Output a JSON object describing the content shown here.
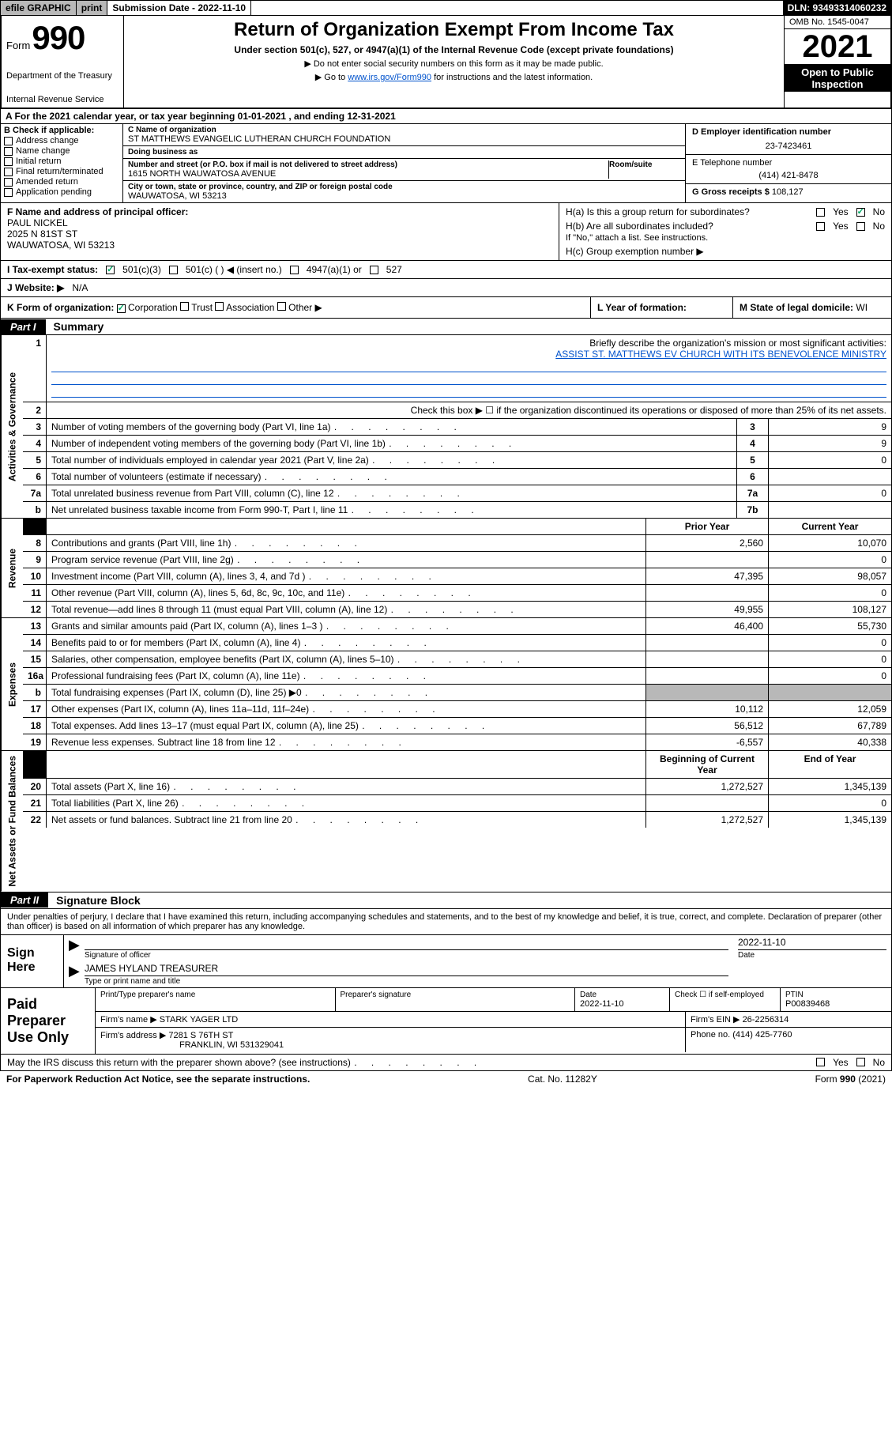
{
  "efile": {
    "graphic": "efile GRAPHIC",
    "print": "print",
    "submission_label": "Submission Date - 2022-11-10",
    "dln_label": "DLN: 93493314060232"
  },
  "header": {
    "form_word": "Form",
    "form_number": "990",
    "dept": "Department of the Treasury",
    "irs": "Internal Revenue Service",
    "title": "Return of Organization Exempt From Income Tax",
    "subtitle": "Under section 501(c), 527, or 4947(a)(1) of the Internal Revenue Code (except private foundations)",
    "note1": "▶ Do not enter social security numbers on this form as it may be made public.",
    "note2_pre": "▶ Go to ",
    "note2_link": "www.irs.gov/Form990",
    "note2_post": " for instructions and the latest information.",
    "omb": "OMB No. 1545-0047",
    "year": "2021",
    "open_public1": "Open to Public",
    "open_public2": "Inspection"
  },
  "sec_a": "A  For the 2021 calendar year, or tax year beginning 01-01-2021    , and ending 12-31-2021",
  "sec_b": {
    "label": "B Check if applicable:",
    "address_change": "Address change",
    "name_change": "Name change",
    "initial_return": "Initial return",
    "final_return": "Final return/terminated",
    "amended": "Amended return",
    "app_pending": "Application pending"
  },
  "sec_c": {
    "name_lbl": "C Name of organization",
    "name": "ST MATTHEWS EVANGELIC LUTHERAN CHURCH FOUNDATION",
    "dba_lbl": "Doing business as",
    "dba": "",
    "addr_lbl": "Number and street (or P.O. box if mail is not delivered to street address)",
    "addr": "1615 NORTH WAUWATOSA AVENUE",
    "room_lbl": "Room/suite",
    "city_lbl": "City or town, state or province, country, and ZIP or foreign postal code",
    "city": "WAUWATOSA, WI  53213"
  },
  "sec_d": {
    "lbl": "D Employer identification number",
    "val": "23-7423461"
  },
  "sec_e": {
    "lbl": "E Telephone number",
    "val": "(414) 421-8478"
  },
  "sec_g": {
    "lbl": "G Gross receipts $",
    "val": "108,127"
  },
  "sec_f": {
    "lbl": "F Name and address of principal officer:",
    "name": "PAUL NICKEL",
    "addr1": "2025 N 81ST ST",
    "addr2": "WAUWATOSA, WI  53213"
  },
  "sec_h": {
    "ha": "H(a)  Is this a group return for subordinates?",
    "hb": "H(b)  Are all subordinates included?",
    "hb_note": "If \"No,\" attach a list. See instructions.",
    "hc": "H(c)  Group exemption number ▶",
    "yes": "Yes",
    "no": "No"
  },
  "sec_i": {
    "lbl": "I   Tax-exempt status:",
    "o1": "501(c)(3)",
    "o2": "501(c) (  ) ◀ (insert no.)",
    "o3": "4947(a)(1) or",
    "o4": "527"
  },
  "sec_j": {
    "lbl": "J   Website: ▶",
    "val": "N/A"
  },
  "sec_k": {
    "lbl": "K Form of organization:",
    "corp": "Corporation",
    "trust": "Trust",
    "assoc": "Association",
    "other": "Other ▶"
  },
  "sec_l": {
    "lbl": "L Year of formation:",
    "val": ""
  },
  "sec_m": {
    "lbl": "M State of legal domicile:",
    "val": "WI"
  },
  "part1": {
    "tag": "Part I",
    "title": "Summary"
  },
  "summary": {
    "l1_lbl": "Briefly describe the organization's mission or most significant activities:",
    "l1_val": "ASSIST ST. MATTHEWS EV CHURCH WITH ITS BENEVOLENCE MINISTRY",
    "l2": "Check this box ▶ ☐  if the organization discontinued its operations or disposed of more than 25% of its net assets.",
    "rows_single": [
      {
        "n": "3",
        "lbl": "Number of voting members of the governing body (Part VI, line 1a)",
        "box": "3",
        "val": "9"
      },
      {
        "n": "4",
        "lbl": "Number of independent voting members of the governing body (Part VI, line 1b)",
        "box": "4",
        "val": "9"
      },
      {
        "n": "5",
        "lbl": "Total number of individuals employed in calendar year 2021 (Part V, line 2a)",
        "box": "5",
        "val": "0"
      },
      {
        "n": "6",
        "lbl": "Total number of volunteers (estimate if necessary)",
        "box": "6",
        "val": ""
      },
      {
        "n": "7a",
        "lbl": "Total unrelated business revenue from Part VIII, column (C), line 12",
        "box": "7a",
        "val": "0"
      },
      {
        "n": "b",
        "lbl": "Net unrelated business taxable income from Form 990-T, Part I, line 11",
        "box": "7b",
        "val": ""
      }
    ],
    "col_prior": "Prior Year",
    "col_current": "Current Year",
    "rev_rows": [
      {
        "n": "8",
        "lbl": "Contributions and grants (Part VIII, line 1h)",
        "py": "2,560",
        "cy": "10,070"
      },
      {
        "n": "9",
        "lbl": "Program service revenue (Part VIII, line 2g)",
        "py": "",
        "cy": "0"
      },
      {
        "n": "10",
        "lbl": "Investment income (Part VIII, column (A), lines 3, 4, and 7d )",
        "py": "47,395",
        "cy": "98,057"
      },
      {
        "n": "11",
        "lbl": "Other revenue (Part VIII, column (A), lines 5, 6d, 8c, 9c, 10c, and 11e)",
        "py": "",
        "cy": "0"
      },
      {
        "n": "12",
        "lbl": "Total revenue—add lines 8 through 11 (must equal Part VIII, column (A), line 12)",
        "py": "49,955",
        "cy": "108,127"
      }
    ],
    "exp_rows": [
      {
        "n": "13",
        "lbl": "Grants and similar amounts paid (Part IX, column (A), lines 1–3 )",
        "py": "46,400",
        "cy": "55,730"
      },
      {
        "n": "14",
        "lbl": "Benefits paid to or for members (Part IX, column (A), line 4)",
        "py": "",
        "cy": "0"
      },
      {
        "n": "15",
        "lbl": "Salaries, other compensation, employee benefits (Part IX, column (A), lines 5–10)",
        "py": "",
        "cy": "0"
      },
      {
        "n": "16a",
        "lbl": "Professional fundraising fees (Part IX, column (A), line 11e)",
        "py": "",
        "cy": "0"
      },
      {
        "n": "b",
        "lbl": "Total fundraising expenses (Part IX, column (D), line 25) ▶0",
        "py": "GREY",
        "cy": "GREY"
      },
      {
        "n": "17",
        "lbl": "Other expenses (Part IX, column (A), lines 11a–11d, 11f–24e)",
        "py": "10,112",
        "cy": "12,059"
      },
      {
        "n": "18",
        "lbl": "Total expenses. Add lines 13–17 (must equal Part IX, column (A), line 25)",
        "py": "56,512",
        "cy": "67,789"
      },
      {
        "n": "19",
        "lbl": "Revenue less expenses. Subtract line 18 from line 12",
        "py": "-6,557",
        "cy": "40,338"
      }
    ],
    "col_begin": "Beginning of Current Year",
    "col_end": "End of Year",
    "na_rows": [
      {
        "n": "20",
        "lbl": "Total assets (Part X, line 16)",
        "py": "1,272,527",
        "cy": "1,345,139"
      },
      {
        "n": "21",
        "lbl": "Total liabilities (Part X, line 26)",
        "py": "",
        "cy": "0"
      },
      {
        "n": "22",
        "lbl": "Net assets or fund balances. Subtract line 21 from line 20",
        "py": "1,272,527",
        "cy": "1,345,139"
      }
    ],
    "vlabels": {
      "gov": "Activities & Governance",
      "rev": "Revenue",
      "exp": "Expenses",
      "na": "Net Assets or Fund Balances"
    }
  },
  "part2": {
    "tag": "Part II",
    "title": "Signature Block"
  },
  "penalties": "Under penalties of perjury, I declare that I have examined this return, including accompanying schedules and statements, and to the best of my knowledge and belief, it is true, correct, and complete. Declaration of preparer (other than officer) is based on all information of which preparer has any knowledge.",
  "sign": {
    "here": "Sign Here",
    "sig_officer": "Signature of officer",
    "date_lbl": "Date",
    "date": "2022-11-10",
    "name": "JAMES HYLAND TREASURER",
    "name_lbl": "Type or print name and title"
  },
  "prep": {
    "label": "Paid Preparer Use Only",
    "r1": {
      "c1_lbl": "Print/Type preparer's name",
      "c1": "",
      "c2_lbl": "Preparer's signature",
      "c2": "",
      "c3_lbl": "Date",
      "c3": "2022-11-10",
      "c4_lbl": "Check ☐ if self-employed",
      "c5_lbl": "PTIN",
      "c5": "P00839468"
    },
    "r2": {
      "firm_lbl": "Firm's name    ▶",
      "firm": "STARK YAGER LTD",
      "ein_lbl": "Firm's EIN ▶",
      "ein": "26-2256314"
    },
    "r3": {
      "addr_lbl": "Firm's address ▶",
      "addr1": "7281 S 76TH ST",
      "addr2": "FRANKLIN, WI  531329041",
      "phone_lbl": "Phone no.",
      "phone": "(414) 425-7760"
    }
  },
  "discuss": {
    "text": "May the IRS discuss this return with the preparer shown above? (see instructions)",
    "yes": "Yes",
    "no": "No"
  },
  "footer": {
    "left": "For Paperwork Reduction Act Notice, see the separate instructions.",
    "mid": "Cat. No. 11282Y",
    "right": "Form 990 (2021)"
  }
}
